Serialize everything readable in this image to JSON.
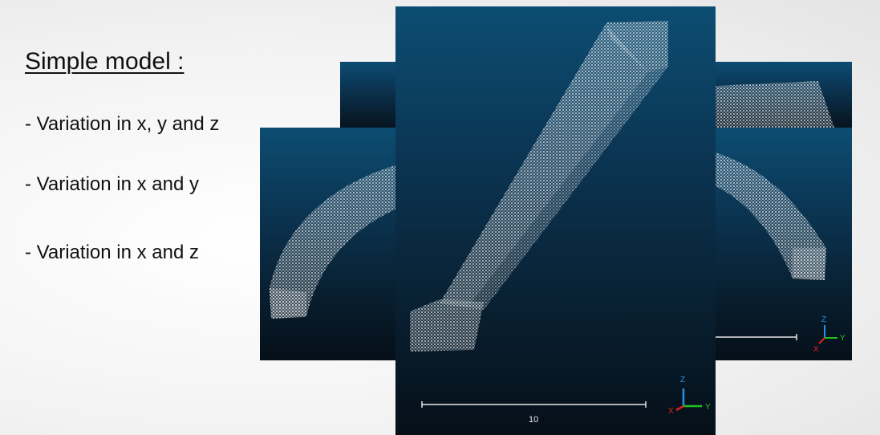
{
  "slide": {
    "title": "Simple model :",
    "bullets": [
      "- Variation in x, y and z",
      "- Variation in x and y",
      "- Variation in x and z"
    ]
  },
  "viewports": {
    "main": {
      "scale_label": "10",
      "axes": {
        "z": "Z",
        "y": "Y",
        "x": "X"
      }
    },
    "right": {
      "axes": {
        "z": "Z",
        "y": "Y",
        "x": "X"
      }
    }
  },
  "colors": {
    "viewer_top": "#0c4d72",
    "viewer_bottom": "#050f18",
    "point_cloud": "#ffffff",
    "axis_x": "#e02020",
    "axis_y": "#20c020",
    "axis_z": "#2a8fe0"
  }
}
